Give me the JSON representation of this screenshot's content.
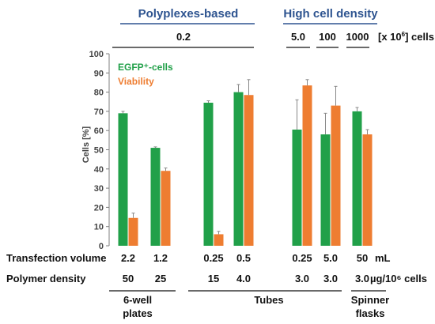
{
  "chart_data": {
    "type": "bar",
    "headers": {
      "left": "Polyplexes-based",
      "right": "High cell density"
    },
    "cell_count": {
      "values": [
        "0.2",
        "5.0",
        "100",
        "1000"
      ],
      "unit_prefix": "[x 10",
      "unit_exp": "6",
      "unit_suffix": "] cells"
    },
    "ylabel": "Cells [%]",
    "ylim": [
      0,
      100
    ],
    "yticks": [
      0,
      10,
      20,
      30,
      40,
      50,
      60,
      70,
      80,
      90,
      100
    ],
    "series": [
      {
        "name": "EGFP⁺-cells",
        "color": "#21a049",
        "values": [
          69,
          51,
          74.5,
          80,
          60.5,
          58,
          70
        ],
        "errors": [
          1,
          0.5,
          1,
          4,
          15.5,
          11,
          2
        ]
      },
      {
        "name": "Viability",
        "color": "#ee7d31",
        "values": [
          14.5,
          39,
          6,
          78.5,
          83.5,
          73,
          58
        ],
        "errors": [
          2.5,
          1.5,
          1.5,
          8,
          3,
          10,
          2.5
        ]
      }
    ],
    "rows": [
      {
        "label": "Transfection volume",
        "values": [
          "2.2",
          "1.2",
          "0.25",
          "0.5",
          "0.25",
          "5.0",
          "50"
        ],
        "unit": "mL"
      },
      {
        "label": "Polymer density",
        "values": [
          "50",
          "25",
          "15",
          "4.0",
          "3.0",
          "3.0",
          "3.0"
        ],
        "unit": "µg/10⁶ cells"
      }
    ],
    "vessels": [
      {
        "line1": "6-well",
        "line2": "plates"
      },
      {
        "line1": "Tubes",
        "line2": ""
      },
      {
        "line1": "Spinner",
        "line2": "flasks"
      }
    ]
  }
}
